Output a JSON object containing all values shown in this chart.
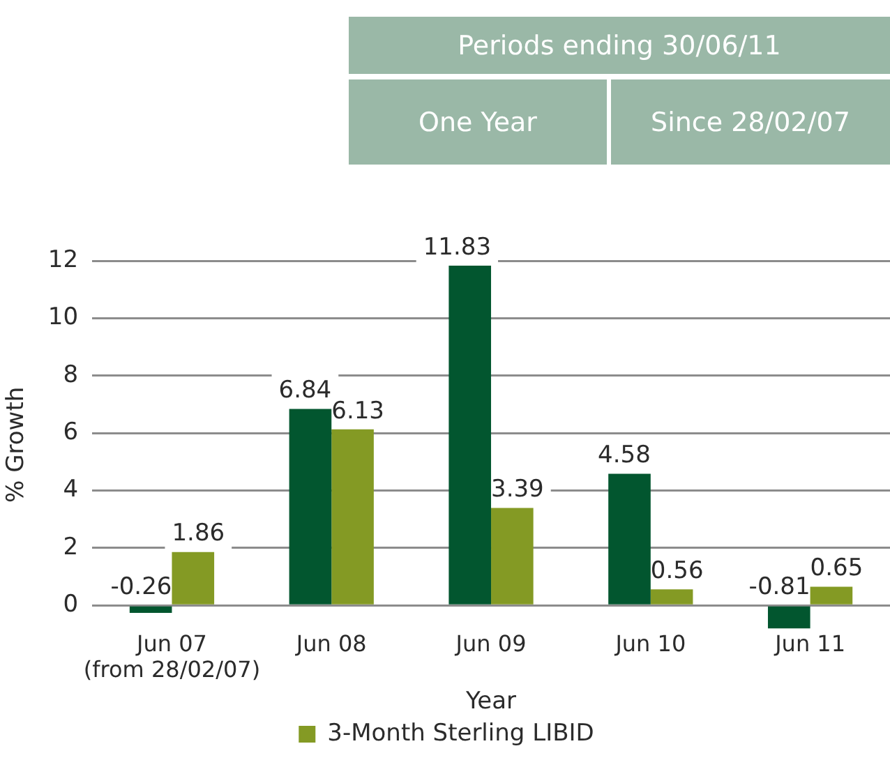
{
  "chart_data": {
    "type": "bar",
    "annotations": [
      "Periods ending 30/06/11",
      "One Year",
      "Since 28/02/07"
    ],
    "xlabel": "Year",
    "ylabel": "% Growth",
    "categories": [
      "Jun 07\n(from 28/02/07)",
      "Jun 08",
      "Jun 09",
      "Jun 10",
      "Jun 11"
    ],
    "series": [
      {
        "color": "#02562f",
        "values": [
          -0.26,
          6.84,
          11.83,
          4.58,
          -0.81
        ]
      },
      {
        "name": "3-Month Sterling LIBID",
        "color": "#849a24",
        "values": [
          1.86,
          6.13,
          3.39,
          0.56,
          0.65
        ]
      }
    ],
    "ylim": [
      -0.81,
      12
    ],
    "yticks": [
      0,
      2,
      4,
      6,
      8,
      10,
      12
    ],
    "grid": "y",
    "legend": "bottom",
    "data_labels": true
  }
}
